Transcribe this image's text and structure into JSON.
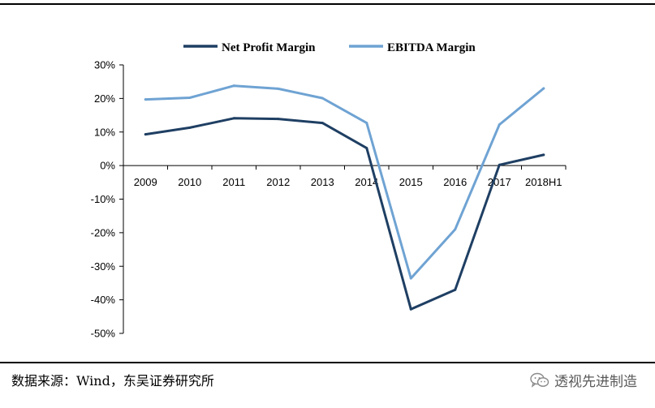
{
  "chart_data": {
    "type": "line",
    "title": "",
    "xlabel": "",
    "ylabel": "",
    "categories": [
      "2009",
      "2010",
      "2011",
      "2012",
      "2013",
      "2014",
      "2015",
      "2016",
      "2017",
      "2018H1"
    ],
    "ylim": [
      -50,
      30
    ],
    "yticks": [
      30,
      20,
      10,
      0,
      -10,
      -20,
      -30,
      -40,
      -50
    ],
    "ytick_labels": [
      "30%",
      "20%",
      "10%",
      "0%",
      "-10%",
      "-20%",
      "-30%",
      "-40%",
      "-50%"
    ],
    "grid": false,
    "legend_position": "top-center",
    "series": [
      {
        "name": "Net Profit Margin",
        "color": "#1f3f63",
        "values": [
          9.3,
          11.3,
          14.1,
          13.9,
          12.7,
          5.2,
          -42.8,
          -37.0,
          0.2,
          3.2
        ]
      },
      {
        "name": "EBITDA Margin",
        "color": "#6fa3d3",
        "values": [
          19.7,
          20.2,
          23.8,
          22.9,
          20.1,
          12.7,
          -33.6,
          -19.0,
          12.2,
          23.0
        ]
      }
    ]
  },
  "source_text": "数据来源：Wind，东吴证券研究所",
  "watermark_text": "透视先进制造",
  "watermark_icon": "wechat-icon"
}
